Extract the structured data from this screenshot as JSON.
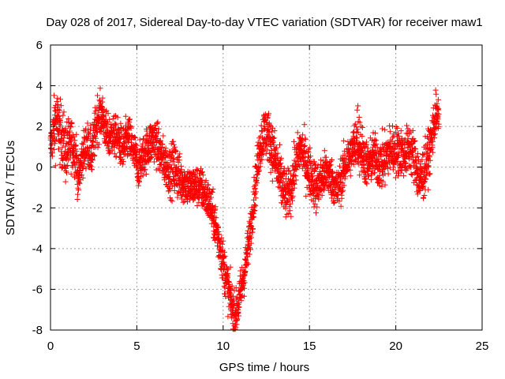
{
  "chart_data": {
    "type": "scatter",
    "title": "Day 028 of 2017, Sidereal Day-to-day VTEC variation (SDTVAR) for receiver maw1",
    "xlabel": "GPS time / hours",
    "ylabel": "SDTVAR / TECUs",
    "xlim": [
      0,
      25
    ],
    "ylim": [
      -8,
      6
    ],
    "xticks": [
      0,
      5,
      10,
      15,
      20,
      25
    ],
    "yticks": [
      -8,
      -6,
      -4,
      -2,
      0,
      2,
      4,
      6
    ],
    "grid": true,
    "marker": "+",
    "color": "#ff0000",
    "series": [
      {
        "name": "SDTVAR",
        "trend": [
          [
            0.0,
            1.0,
            0.7
          ],
          [
            0.3,
            2.3,
            1.4
          ],
          [
            0.6,
            1.6,
            1.2
          ],
          [
            0.9,
            0.7,
            1.3
          ],
          [
            1.2,
            1.2,
            1.0
          ],
          [
            1.5,
            0.6,
            1.0
          ],
          [
            1.6,
            -0.8,
            0.8
          ],
          [
            1.8,
            0.4,
            0.8
          ],
          [
            2.1,
            1.2,
            0.9
          ],
          [
            2.4,
            0.6,
            0.9
          ],
          [
            2.7,
            2.4,
            1.0
          ],
          [
            3.0,
            2.6,
            0.8
          ],
          [
            3.3,
            1.4,
            0.9
          ],
          [
            3.6,
            1.6,
            0.8
          ],
          [
            3.9,
            1.4,
            0.8
          ],
          [
            4.2,
            0.8,
            0.9
          ],
          [
            4.5,
            1.5,
            0.9
          ],
          [
            4.8,
            0.8,
            0.9
          ],
          [
            5.1,
            0.0,
            0.8
          ],
          [
            5.4,
            0.6,
            0.8
          ],
          [
            5.7,
            1.1,
            0.9
          ],
          [
            6.0,
            1.4,
            0.9
          ],
          [
            6.3,
            0.8,
            0.9
          ],
          [
            6.6,
            0.2,
            0.9
          ],
          [
            6.9,
            -0.2,
            0.9
          ],
          [
            7.2,
            0.0,
            1.2
          ],
          [
            7.5,
            -0.6,
            0.9
          ],
          [
            7.8,
            -0.8,
            0.8
          ],
          [
            8.1,
            -1.0,
            0.8
          ],
          [
            8.4,
            -0.9,
            0.8
          ],
          [
            8.7,
            -1.0,
            0.8
          ],
          [
            9.0,
            -1.4,
            0.8
          ],
          [
            9.3,
            -2.0,
            0.8
          ],
          [
            9.6,
            -3.0,
            0.9
          ],
          [
            9.9,
            -4.2,
            0.9
          ],
          [
            10.2,
            -5.6,
            0.9
          ],
          [
            10.5,
            -6.8,
            0.9
          ],
          [
            10.7,
            -7.3,
            0.8
          ],
          [
            10.9,
            -6.6,
            0.9
          ],
          [
            11.1,
            -5.8,
            0.9
          ],
          [
            11.3,
            -4.8,
            0.8
          ],
          [
            11.5,
            -3.6,
            0.8
          ],
          [
            11.7,
            -2.2,
            0.8
          ],
          [
            11.9,
            -0.6,
            0.8
          ],
          [
            12.1,
            0.9,
            0.9
          ],
          [
            12.4,
            1.8,
            1.0
          ],
          [
            12.7,
            1.4,
            1.0
          ],
          [
            13.0,
            0.4,
            1.1
          ],
          [
            13.3,
            -0.6,
            1.1
          ],
          [
            13.6,
            -1.4,
            1.0
          ],
          [
            13.9,
            -1.2,
            0.9
          ],
          [
            14.2,
            0.2,
            0.9
          ],
          [
            14.5,
            1.0,
            0.9
          ],
          [
            14.8,
            0.2,
            1.0
          ],
          [
            15.1,
            -0.4,
            1.0
          ],
          [
            15.4,
            -1.0,
            1.0
          ],
          [
            15.7,
            -0.6,
            0.9
          ],
          [
            16.0,
            -0.2,
            0.9
          ],
          [
            16.3,
            -0.6,
            0.8
          ],
          [
            16.6,
            -1.2,
            0.8
          ],
          [
            16.9,
            -0.4,
            0.9
          ],
          [
            17.2,
            0.4,
            0.9
          ],
          [
            17.5,
            0.8,
            0.8
          ],
          [
            17.8,
            1.6,
            1.4
          ],
          [
            18.1,
            0.6,
            1.0
          ],
          [
            18.4,
            0.0,
            0.9
          ],
          [
            18.7,
            0.6,
            0.9
          ],
          [
            19.0,
            0.2,
            1.0
          ],
          [
            19.3,
            0.2,
            1.1
          ],
          [
            19.6,
            0.8,
            1.0
          ],
          [
            19.9,
            0.8,
            1.0
          ],
          [
            20.2,
            0.8,
            1.0
          ],
          [
            20.5,
            0.6,
            0.9
          ],
          [
            20.8,
            1.0,
            1.0
          ],
          [
            21.1,
            0.4,
            1.0
          ],
          [
            21.4,
            -0.8,
            1.2
          ],
          [
            21.7,
            0.0,
            1.0
          ],
          [
            22.0,
            1.0,
            0.9
          ],
          [
            22.3,
            2.6,
            0.9
          ],
          [
            22.5,
            2.4,
            0.5
          ]
        ],
        "points_per_hour": 140
      }
    ]
  }
}
